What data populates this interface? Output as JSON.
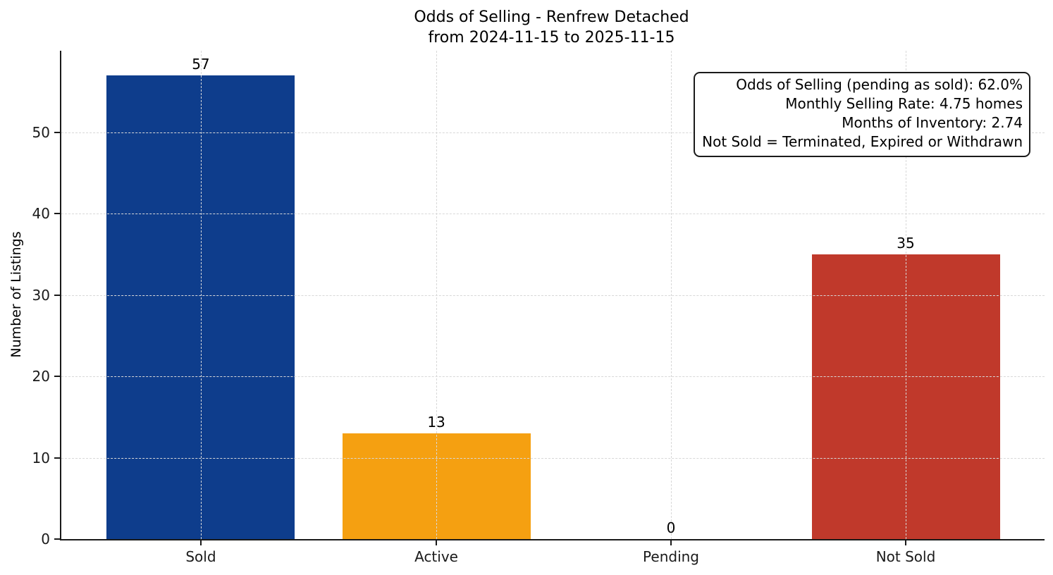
{
  "title": {
    "line1": "Odds of Selling - Renfrew Detached",
    "line2": "from 2024-11-15 to 2025-11-15"
  },
  "chart_data": {
    "type": "bar",
    "title": "Odds of Selling - Renfrew Detached\nfrom 2024-11-15 to 2025-11-15",
    "categories": [
      "Sold",
      "Active",
      "Pending",
      "Not Sold"
    ],
    "values": [
      57,
      13,
      0,
      35
    ],
    "bar_colors": [
      "#0e3d8c",
      "#f5a011",
      null,
      "#c0392b"
    ],
    "xlabel": "",
    "ylabel": "Number of Listings",
    "ylim": [
      0,
      60
    ],
    "yticks": [
      0,
      10,
      20,
      30,
      40,
      50
    ],
    "grid": {
      "visible": true,
      "style": "dashed",
      "axes": "both",
      "color": "#d8d8d8",
      "above_bars": true
    },
    "legend": {
      "visible": false
    }
  },
  "annotation_box": {
    "lines": [
      "Odds of Selling (pending as sold): 62.0%",
      "Monthly Selling Rate: 4.75 homes",
      "Months of Inventory: 2.74",
      "Not Sold = Terminated, Expired or Withdrawn"
    ],
    "border_color": "#1a1a1a",
    "background": "#ffffff"
  },
  "style": {
    "axis_color": "#1a1a1a",
    "text_color": "#000000",
    "background": "#ffffff"
  }
}
